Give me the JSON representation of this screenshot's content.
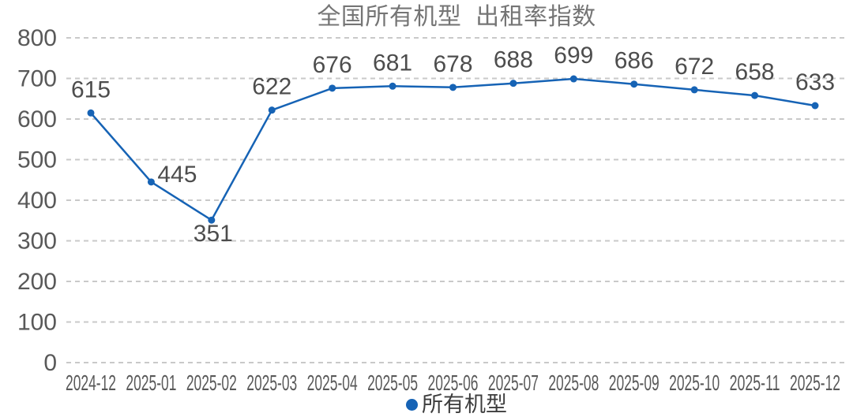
{
  "chart_data": {
    "type": "line",
    "title": "全国所有机型  出租率指数",
    "categories": [
      "2024-12",
      "2025-01",
      "2025-02",
      "2025-03",
      "2025-04",
      "2025-05",
      "2025-06",
      "2025-07",
      "2025-08",
      "2025-09",
      "2025-10",
      "2025-11",
      "2025-12"
    ],
    "series": [
      {
        "name": "所有机型",
        "values": [
          615,
          445,
          351,
          622,
          676,
          681,
          678,
          688,
          699,
          686,
          672,
          658,
          633
        ]
      }
    ],
    "xlabel": "",
    "ylabel": "",
    "ylim": [
      0,
      800
    ],
    "yticks": [
      0,
      100,
      200,
      300,
      400,
      500,
      600,
      700,
      800
    ],
    "grid": "horizontal-dashed",
    "data_labels": true,
    "legend_position": "bottom-center",
    "colors": {
      "series": "#1663b5",
      "grid": "#c9c9c9",
      "title_text": "#757575",
      "axis_text": "#595959",
      "data_label_text": "#4d4d4d",
      "legend_text": "#3d3d3d",
      "background": "#ffffff"
    }
  }
}
